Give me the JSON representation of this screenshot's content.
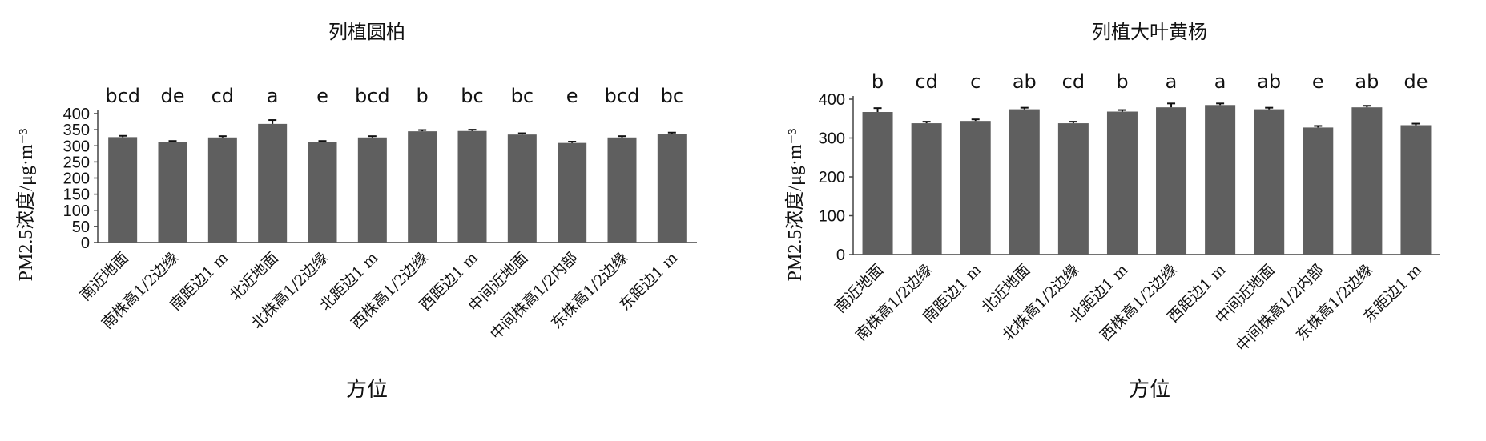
{
  "chart_data": [
    {
      "type": "bar",
      "title": "列植圆柏",
      "xlabel": "方位",
      "ylabel": "PM2.5浓度/μg·m⁻³",
      "ylim": [
        0,
        400
      ],
      "yticks": [
        0,
        50,
        100,
        150,
        200,
        250,
        300,
        350,
        400
      ],
      "categories": [
        "南近地面",
        "南株高1/2边缘",
        "南距边1 m",
        "北近地面",
        "北株高1/2边缘",
        "北距边1 m",
        "西株高1/2边缘",
        "西距边1 m",
        "中间近地面",
        "中间株高1/2内部",
        "东株高1/2边缘",
        "东距边1 m"
      ],
      "values": [
        327,
        311,
        326,
        368,
        311,
        326,
        345,
        346,
        335,
        309,
        326,
        336
      ],
      "errors": [
        4,
        4,
        4,
        12,
        4,
        4,
        4,
        4,
        4,
        4,
        4,
        5
      ],
      "significance": [
        "bcd",
        "de",
        "cd",
        "a",
        "e",
        "bcd",
        "b",
        "bc",
        "bc",
        "e",
        "bcd",
        "bc"
      ],
      "grid": false,
      "legend": "none"
    },
    {
      "type": "bar",
      "title": "列植大叶黄杨",
      "xlabel": "方位",
      "ylabel": "PM2.5浓度/μg·m⁻³",
      "ylim": [
        0,
        400
      ],
      "yticks": [
        0,
        100,
        200,
        300,
        400
      ],
      "categories": [
        "南近地面",
        "南株高1/2边缘",
        "南距边1 m",
        "北近地面",
        "北株高1/2边缘",
        "北距边1 m",
        "西株高1/2边缘",
        "西距边1 m",
        "中间近地面",
        "中间株高1/2内部",
        "东株高1/2边缘",
        "东距边1 m"
      ],
      "values": [
        367,
        338,
        344,
        374,
        338,
        368,
        379,
        385,
        374,
        327,
        379,
        333
      ],
      "errors": [
        10,
        4,
        4,
        4,
        4,
        4,
        10,
        4,
        4,
        4,
        4,
        4
      ],
      "significance": [
        "b",
        "cd",
        "c",
        "ab",
        "cd",
        "b",
        "a",
        "a",
        "ab",
        "e",
        "ab",
        "de"
      ],
      "grid": false,
      "legend": "none"
    }
  ]
}
